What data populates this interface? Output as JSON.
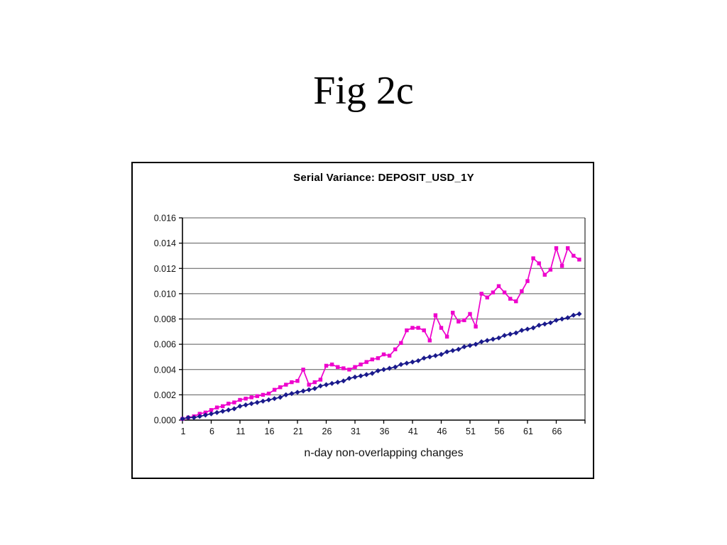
{
  "slide": {
    "title": "Fig 2c"
  },
  "chart_data": {
    "type": "line",
    "title": "Serial Variance: DEPOSIT_USD_1Y",
    "xlabel": "n-day non-overlapping changes",
    "ylabel": "",
    "x_start": 1,
    "x_step": 1,
    "n_points": 70,
    "x_tick_labels": [
      "1",
      "6",
      "11",
      "16",
      "21",
      "26",
      "31",
      "36",
      "41",
      "46",
      "51",
      "56",
      "61",
      "66"
    ],
    "y_ticks": [
      "0.000",
      "0.002",
      "0.004",
      "0.006",
      "0.008",
      "0.010",
      "0.012",
      "0.014",
      "0.016"
    ],
    "ylim": [
      0,
      0.016
    ],
    "grid": true,
    "legend": "none",
    "colors": {
      "grid": "#595959",
      "axis": "#000000",
      "frame_border": "#000000"
    },
    "series": [
      {
        "name": "series-1-magenta-squares",
        "marker": "square",
        "color": "#ee00cc",
        "values": [
          0.0001,
          0.0002,
          0.0003,
          0.0005,
          0.0006,
          0.0008,
          0.001,
          0.0011,
          0.0013,
          0.0014,
          0.0016,
          0.0017,
          0.0018,
          0.0019,
          0.002,
          0.0021,
          0.0024,
          0.0026,
          0.0028,
          0.003,
          0.0031,
          0.004,
          0.0028,
          0.003,
          0.0032,
          0.0043,
          0.0044,
          0.0042,
          0.0041,
          0.004,
          0.0042,
          0.0044,
          0.0046,
          0.0048,
          0.0049,
          0.0052,
          0.0051,
          0.0056,
          0.0061,
          0.0071,
          0.0073,
          0.0073,
          0.0071,
          0.0063,
          0.0083,
          0.0073,
          0.0066,
          0.0085,
          0.0078,
          0.0079,
          0.0084,
          0.0074,
          0.01,
          0.0097,
          0.0101,
          0.0106,
          0.0101,
          0.0096,
          0.0094,
          0.0102,
          0.011,
          0.0128,
          0.0124,
          0.0115,
          0.0119,
          0.0136,
          0.0122,
          0.0136,
          0.013,
          0.0127
        ]
      },
      {
        "name": "series-2-navy-diamonds",
        "marker": "diamond",
        "color": "#1a1a8c",
        "values": [
          0.0001,
          0.0002,
          0.0002,
          0.0003,
          0.0004,
          0.0005,
          0.0006,
          0.0007,
          0.0008,
          0.0009,
          0.0011,
          0.0012,
          0.0013,
          0.0014,
          0.0015,
          0.0016,
          0.0017,
          0.0018,
          0.002,
          0.0021,
          0.0022,
          0.0023,
          0.0024,
          0.0025,
          0.0027,
          0.0028,
          0.0029,
          0.003,
          0.0031,
          0.0033,
          0.0034,
          0.0035,
          0.0036,
          0.0037,
          0.0039,
          0.004,
          0.0041,
          0.0042,
          0.0044,
          0.0045,
          0.0046,
          0.0047,
          0.0049,
          0.005,
          0.0051,
          0.0052,
          0.0054,
          0.0055,
          0.0056,
          0.0058,
          0.0059,
          0.006,
          0.0062,
          0.0063,
          0.0064,
          0.0065,
          0.0067,
          0.0068,
          0.0069,
          0.0071,
          0.0072,
          0.0073,
          0.0075,
          0.0076,
          0.0077,
          0.0079,
          0.008,
          0.0081,
          0.0083,
          0.0084
        ]
      }
    ]
  }
}
